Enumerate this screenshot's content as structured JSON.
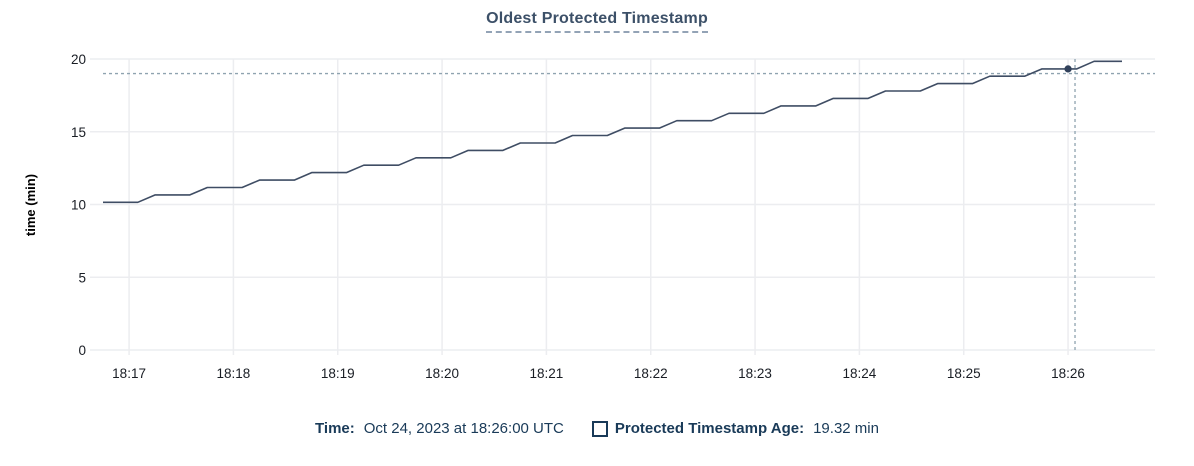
{
  "title": "Oldest Protected Timestamp",
  "chart_data": {
    "type": "line",
    "title": "Oldest Protected Timestamp",
    "xlabel": "",
    "ylabel": "time (min)",
    "ylim": [
      0,
      20
    ],
    "yticks": [
      0,
      5,
      10,
      15,
      20
    ],
    "xlim": [
      "18:16:45",
      "18:26:50"
    ],
    "xticks": [
      "18:17",
      "18:18",
      "18:19",
      "18:20",
      "18:21",
      "18:22",
      "18:23",
      "18:24",
      "18:25",
      "18:26"
    ],
    "grid": true,
    "legend_position": "bottom",
    "series": [
      {
        "name": "Protected Timestamp Age",
        "unit": "min",
        "points": [
          [
            "18:16:45",
            10.15
          ],
          [
            "18:17:05",
            10.15
          ],
          [
            "18:17:15",
            10.66
          ],
          [
            "18:17:35",
            10.66
          ],
          [
            "18:17:45",
            11.17
          ],
          [
            "18:18:05",
            11.17
          ],
          [
            "18:18:15",
            11.68
          ],
          [
            "18:18:35",
            11.68
          ],
          [
            "18:18:45",
            12.19
          ],
          [
            "18:19:05",
            12.19
          ],
          [
            "18:19:15",
            12.7
          ],
          [
            "18:19:35",
            12.7
          ],
          [
            "18:19:45",
            13.21
          ],
          [
            "18:20:05",
            13.21
          ],
          [
            "18:20:15",
            13.72
          ],
          [
            "18:20:35",
            13.72
          ],
          [
            "18:20:45",
            14.23
          ],
          [
            "18:21:05",
            14.23
          ],
          [
            "18:21:15",
            14.74
          ],
          [
            "18:21:35",
            14.74
          ],
          [
            "18:21:45",
            15.25
          ],
          [
            "18:22:05",
            15.25
          ],
          [
            "18:22:15",
            15.76
          ],
          [
            "18:22:35",
            15.76
          ],
          [
            "18:22:45",
            16.27
          ],
          [
            "18:23:05",
            16.27
          ],
          [
            "18:23:15",
            16.78
          ],
          [
            "18:23:35",
            16.78
          ],
          [
            "18:23:45",
            17.29
          ],
          [
            "18:24:05",
            17.29
          ],
          [
            "18:24:15",
            17.8
          ],
          [
            "18:24:35",
            17.8
          ],
          [
            "18:24:45",
            18.31
          ],
          [
            "18:25:05",
            18.31
          ],
          [
            "18:25:15",
            18.82
          ],
          [
            "18:25:35",
            18.82
          ],
          [
            "18:25:45",
            19.32
          ],
          [
            "18:26:05",
            19.32
          ],
          [
            "18:26:15",
            19.84
          ],
          [
            "18:26:31",
            19.84
          ]
        ]
      }
    ],
    "hover": {
      "cursor_time": "18:26:04",
      "value_line": 19.0,
      "point_time": "18:26:00",
      "point_value": 19.32
    }
  },
  "legend": {
    "time_label": "Time:",
    "time_value": "Oct 24, 2023 at 18:26:00 UTC",
    "series_label": "Protected Timestamp Age:",
    "series_value": "19.32 min"
  },
  "colors": {
    "line": "#3f4d64",
    "point": "#31415b",
    "crosshair": "#8fa3b0",
    "grid": "#ecedf0",
    "axis_text": "#191d24",
    "title_text": "#3c5068",
    "legend_text": "#193a58",
    "background": "#ffffff"
  }
}
